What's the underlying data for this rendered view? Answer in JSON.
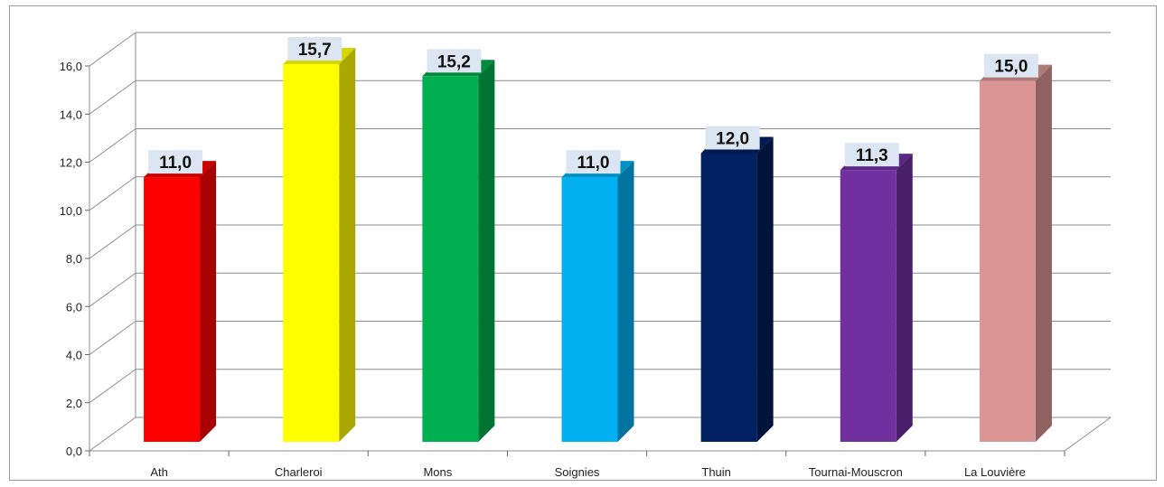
{
  "chart_data": {
    "type": "bar",
    "categories": [
      "Ath",
      "Charleroi",
      "Mons",
      "Soignies",
      "Thuin",
      "Tournai-Mouscron",
      "La Louvière"
    ],
    "values": [
      11.0,
      15.7,
      15.2,
      11.0,
      12.0,
      11.3,
      15.0
    ],
    "value_labels": [
      "11,0",
      "15,7",
      "15,2",
      "11,0",
      "12,0",
      "11,3",
      "15,0"
    ],
    "y_ticks": [
      "0,0",
      "2,0",
      "4,0",
      "6,0",
      "8,0",
      "10,0",
      "12,0",
      "14,0",
      "16,0"
    ],
    "ylim": [
      0,
      16
    ],
    "grid": true,
    "legend": "none",
    "bar_colors": [
      {
        "front": "#ff0000",
        "side": "#a80000",
        "top": "#c80000"
      },
      {
        "front": "#ffff00",
        "side": "#a8a800",
        "top": "#d6d600"
      },
      {
        "front": "#00b050",
        "side": "#007432",
        "top": "#008a3c"
      },
      {
        "front": "#00b0f0",
        "side": "#00749e",
        "top": "#0090c4"
      },
      {
        "front": "#002060",
        "side": "#00133a",
        "top": "#001a4e"
      },
      {
        "front": "#7030a0",
        "side": "#4a1f6a",
        "top": "#5c2784"
      },
      {
        "front": "#da9694",
        "side": "#8f6261",
        "top": "#b07a78"
      }
    ],
    "label_background": "#dce6f2"
  }
}
